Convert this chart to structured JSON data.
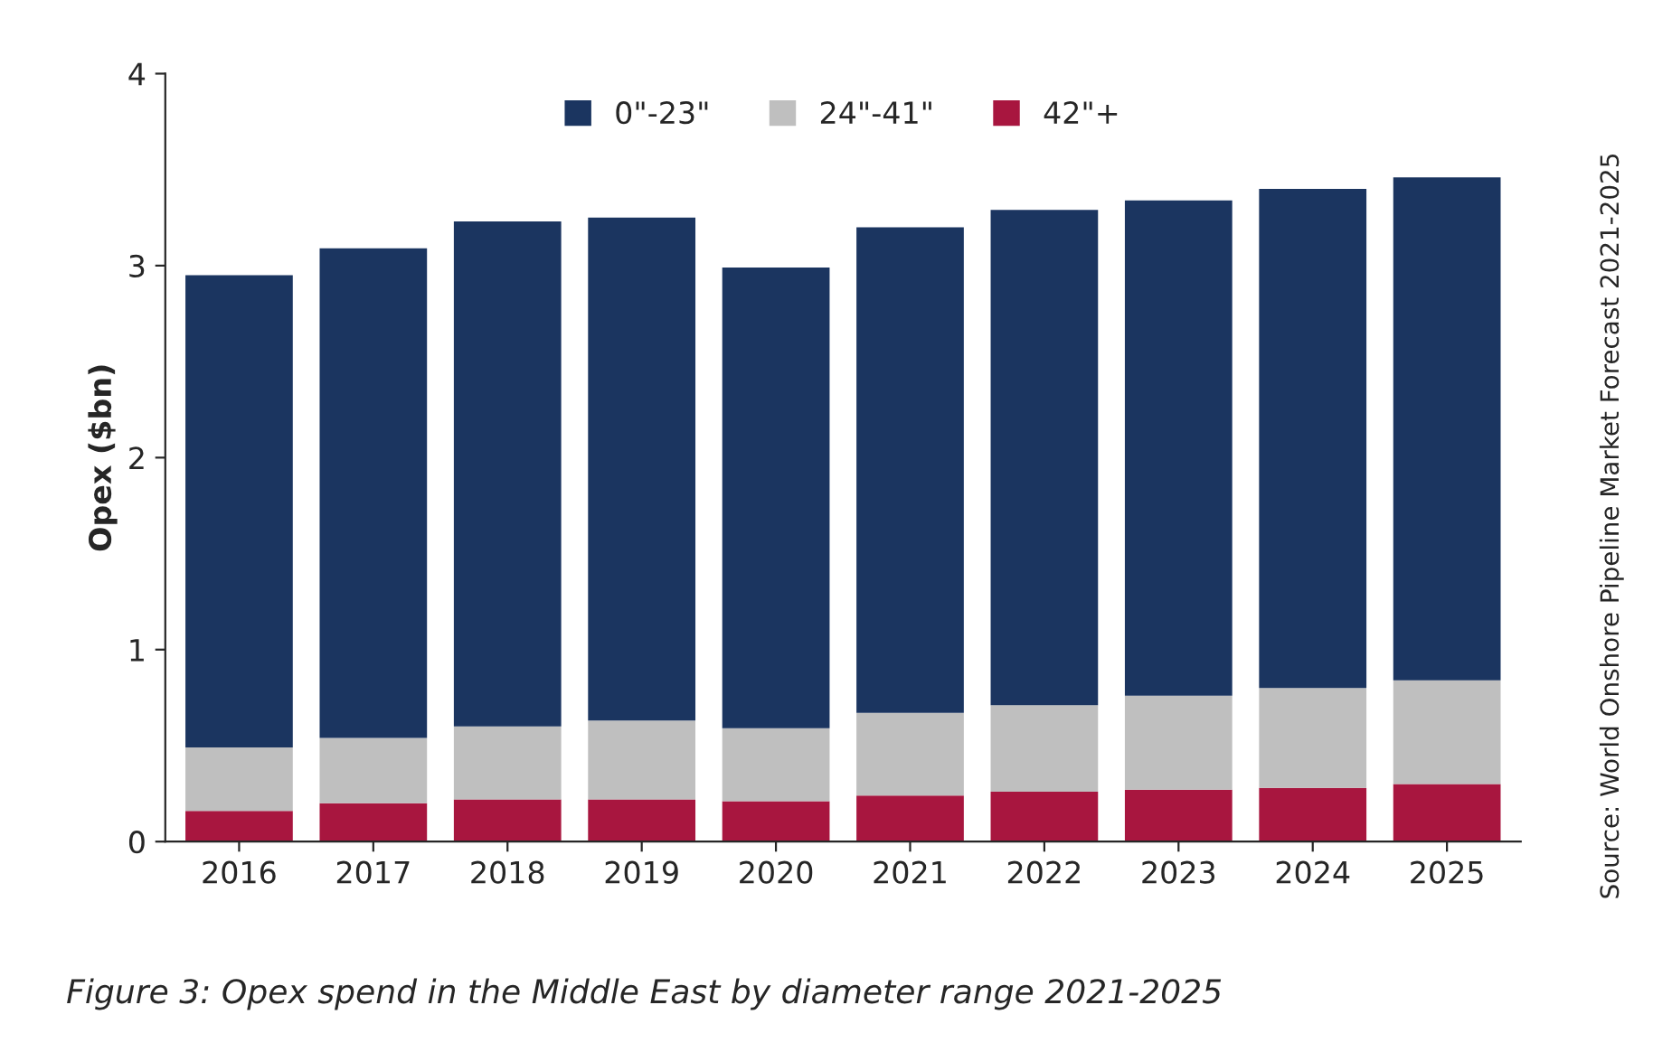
{
  "chart_data": {
    "type": "bar",
    "stacked": true,
    "title": "Figure 3: Opex spend in the Middle East by diameter range 2021-2025",
    "ylabel": "Opex ($bn)",
    "categories": [
      "2016",
      "2017",
      "2018",
      "2019",
      "2020",
      "2021",
      "2022",
      "2023",
      "2024",
      "2025"
    ],
    "series": [
      {
        "name": "42\"+",
        "color": "#a8163f",
        "values": [
          0.16,
          0.2,
          0.22,
          0.22,
          0.21,
          0.24,
          0.26,
          0.27,
          0.28,
          0.3
        ]
      },
      {
        "name": "24\"-41\"",
        "color": "#bfbfbf",
        "values": [
          0.33,
          0.34,
          0.38,
          0.41,
          0.38,
          0.43,
          0.45,
          0.49,
          0.52,
          0.54
        ]
      },
      {
        "name": "0\"-23\"",
        "color": "#1b3560",
        "values": [
          2.46,
          2.55,
          2.63,
          2.62,
          2.4,
          2.53,
          2.58,
          2.58,
          2.6,
          2.62
        ]
      }
    ],
    "ylim": [
      0,
      4
    ],
    "yticks": [
      0,
      1,
      2,
      3,
      4
    ],
    "grid": false,
    "legend": "top",
    "annotations": [
      "Source: World Onshore Pipeline Market Forecast 2021-2025"
    ]
  }
}
